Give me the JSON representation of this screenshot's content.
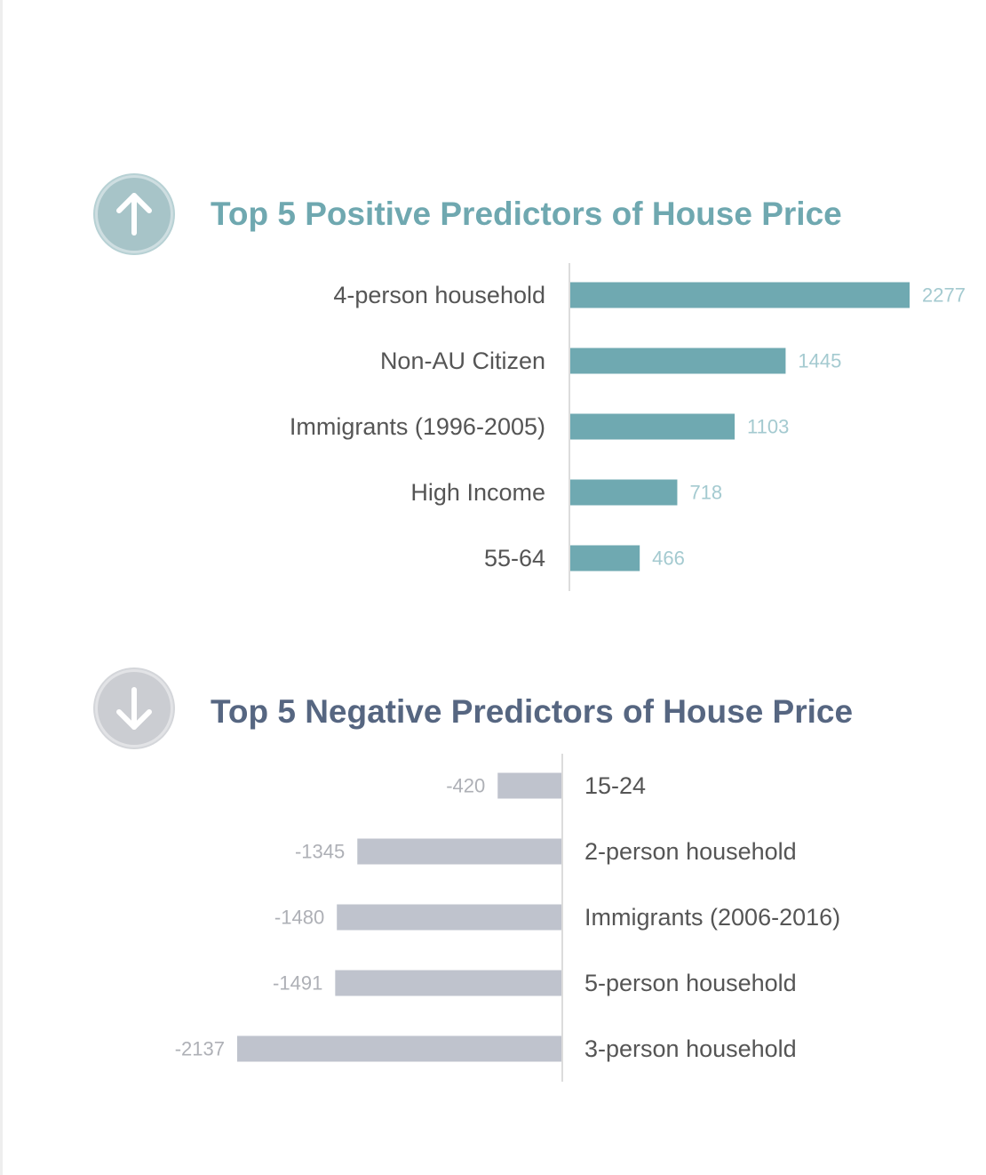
{
  "positive": {
    "title": "Top 5 Positive Predictors of House Price",
    "icon": "arrow-up-icon"
  },
  "negative": {
    "title": "Top 5 Negative Predictors of House Price",
    "icon": "arrow-down-icon"
  },
  "colors": {
    "positive_bar": "#6fa9b1",
    "negative_bar": "#bfc3cd",
    "positive_title": "#6fa8b0",
    "negative_title": "#566681"
  },
  "chart_data": [
    {
      "type": "bar",
      "orientation": "horizontal",
      "title": "Top 5 Positive Predictors of House Price",
      "categories": [
        "4-person household",
        "Non-AU Citizen",
        "Immigrants (1996-2005)",
        "High Income",
        "55-64"
      ],
      "values": [
        2277,
        1445,
        1103,
        718,
        466
      ],
      "data_labels": [
        "2277",
        "1445",
        "1103",
        "718",
        "466"
      ],
      "xlim": [
        0,
        2277
      ],
      "grid": false,
      "legend": "none"
    },
    {
      "type": "bar",
      "orientation": "horizontal",
      "title": "Top 5 Negative Predictors of House Price",
      "categories": [
        "15-24",
        "2-person household",
        "Immigrants (2006-2016)",
        "5-person household",
        "3-person household"
      ],
      "values": [
        -420,
        -1345,
        -1480,
        -1491,
        -2137
      ],
      "data_labels": [
        "-420",
        "-1345",
        "-1480",
        "-1491",
        "-2137"
      ],
      "xlim": [
        -2137,
        0
      ],
      "grid": false,
      "legend": "none"
    }
  ]
}
